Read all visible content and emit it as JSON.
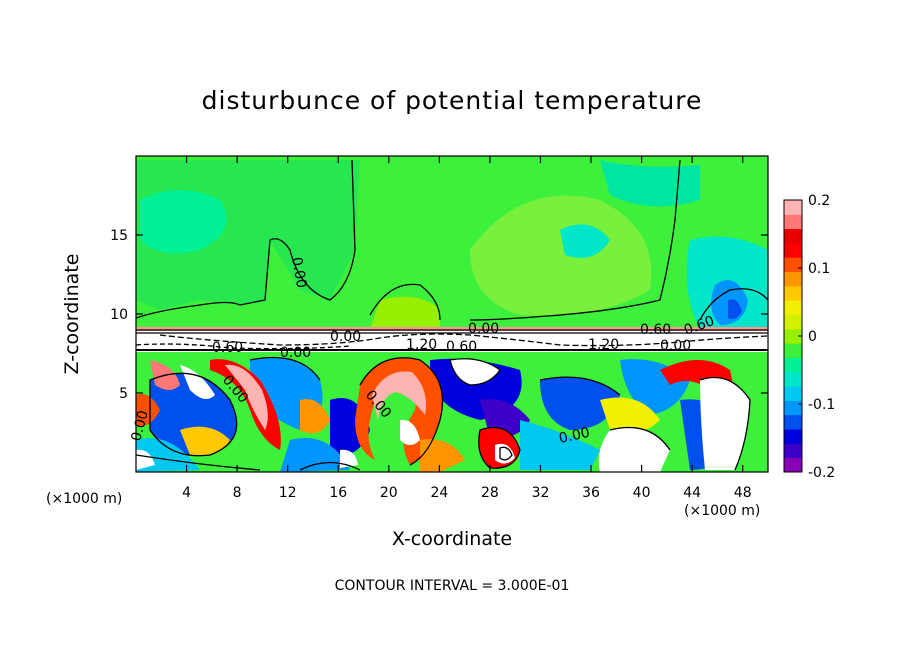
{
  "chart_data": {
    "type": "heatmap",
    "title": "disturbunce of potential temperature",
    "xlabel": "X-coordinate",
    "ylabel": "Z-coordinate",
    "x_unit": "(×1000 m)",
    "x_ticks": [
      4,
      8,
      12,
      16,
      20,
      24,
      28,
      32,
      36,
      40,
      44,
      48
    ],
    "y_ticks": [
      5,
      10,
      15
    ],
    "xlim": [
      0,
      50
    ],
    "ylim": [
      0,
      20
    ],
    "colorbar": {
      "min": -0.2,
      "max": 0.2,
      "tick_labels": [
        "0.2",
        "0.1",
        "0",
        "-0.1",
        "-0.2"
      ],
      "tick_values": [
        0.2,
        0.1,
        0,
        -0.1,
        -0.2
      ],
      "colors": [
        "#8a00b4",
        "#3c00c8",
        "#0000dc",
        "#0050f0",
        "#0096ff",
        "#00c8f0",
        "#00e6c8",
        "#00f096",
        "#3cf03c",
        "#96f000",
        "#d2f000",
        "#f0f000",
        "#ffc800",
        "#ff9600",
        "#ff5000",
        "#ff0000",
        "#e60000",
        "#ff7878",
        "#ffb4b4"
      ]
    },
    "contour_labels": [
      "0.00",
      "0.00",
      "0.00",
      "0.00",
      "0.00",
      "0.00",
      "0.00",
      "0.00",
      "0.60",
      "0.60",
      "0.60",
      "1.20",
      "1.20",
      "0.00",
      "0.60"
    ],
    "contour_interval": "CONTOUR INTERVAL = 3.000E-01",
    "grid": false
  }
}
